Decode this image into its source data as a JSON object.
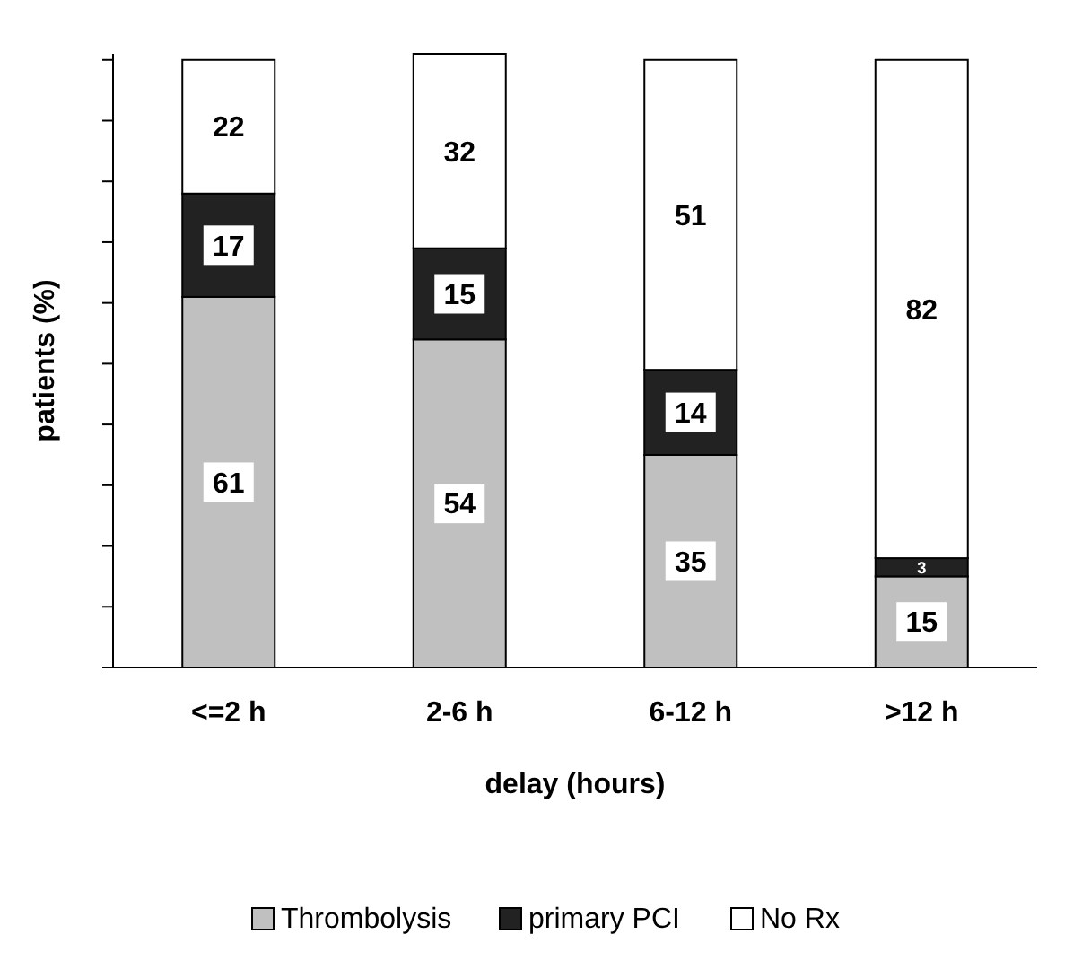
{
  "chart_data": {
    "type": "bar",
    "stacked": true,
    "xlabel": "delay (hours)",
    "ylabel": "patients (%)",
    "categories": [
      "<=2 h",
      "2-6 h",
      "6-12 h",
      ">12 h"
    ],
    "series": [
      {
        "name": "Thrombolysis",
        "color": "#c0c0c0",
        "values": [
          61,
          54,
          35,
          15
        ]
      },
      {
        "name": "primary PCI",
        "color": "#222222",
        "values": [
          17,
          15,
          14,
          3
        ]
      },
      {
        "name": "No Rx",
        "color": "#ffffff",
        "values": [
          22,
          32,
          51,
          82
        ]
      }
    ],
    "ylim": [
      0,
      101
    ],
    "yticks": [
      {
        "value": 0,
        "label": null
      },
      {
        "value": 10,
        "label": null
      },
      {
        "value": 20,
        "label": null
      },
      {
        "value": 30,
        "label": null
      },
      {
        "value": 40,
        "label": null
      },
      {
        "value": 50,
        "label": null
      },
      {
        "value": 60,
        "label": null
      },
      {
        "value": 70,
        "label": null
      },
      {
        "value": 80,
        "label": null
      },
      {
        "value": 90,
        "label": null
      },
      {
        "value": 100,
        "label": null
      }
    ],
    "data_labels": true,
    "legend": "bottom",
    "grid": false
  }
}
